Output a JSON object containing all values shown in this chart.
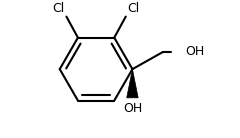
{
  "bg_color": "#ffffff",
  "line_color": "#000000",
  "line_width": 1.5,
  "cl1_label": "Cl",
  "cl2_label": "Cl",
  "oh1_label": "OH",
  "oh2_label": "OH",
  "font_size": 9,
  "figsize": [
    2.4,
    1.38
  ],
  "dpi": 100
}
